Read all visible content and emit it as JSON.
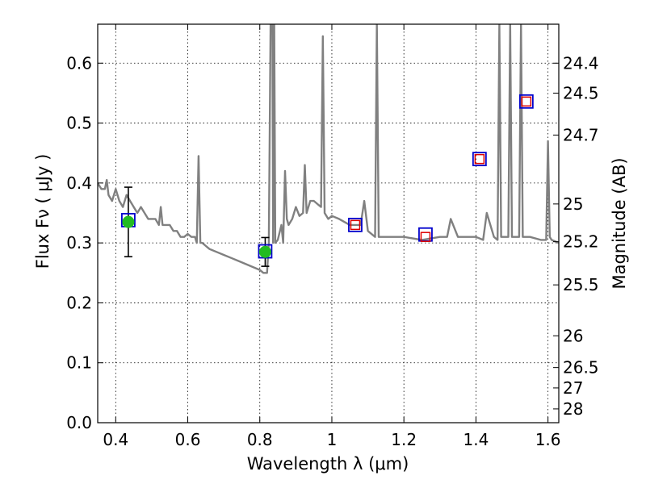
{
  "chart_data": {
    "type": "line",
    "xlabel": "Wavelength  λ (μm)",
    "ylabel": "Flux  Fν  ( μJy )",
    "y2label": "Magnitude (AB)",
    "xlim": [
      0.35,
      1.63
    ],
    "ylim": [
      0.0,
      0.665
    ],
    "grid": true,
    "x_ticks": [
      0.4,
      0.6,
      0.8,
      1.0,
      1.2,
      1.4,
      1.6
    ],
    "x_tick_labels": [
      "0.4",
      "0.6",
      "0.8",
      "1",
      "1.2",
      "1.4",
      "1.6"
    ],
    "y_ticks": [
      0.0,
      0.1,
      0.2,
      0.3,
      0.4,
      0.5,
      0.6
    ],
    "y_tick_labels": [
      "0.0",
      "0.1",
      "0.2",
      "0.3",
      "0.4",
      "0.5",
      "0.6"
    ],
    "y2_ticks": [
      {
        "flux": 0.6,
        "label": "24.4"
      },
      {
        "flux": 0.55,
        "label": "24.5"
      },
      {
        "flux": 0.48,
        "label": "24.7"
      },
      {
        "flux": 0.365,
        "label": "25"
      },
      {
        "flux": 0.302,
        "label": "25.2"
      },
      {
        "flux": 0.23,
        "label": "25.5"
      },
      {
        "flux": 0.145,
        "label": "26"
      },
      {
        "flux": 0.092,
        "label": "26.5"
      },
      {
        "flux": 0.058,
        "label": "27"
      },
      {
        "flux": 0.023,
        "label": "28"
      }
    ],
    "series": [
      {
        "kind": "model-spectrum",
        "color": "#808080",
        "x": [
          0.35,
          0.36,
          0.37,
          0.375,
          0.38,
          0.39,
          0.4,
          0.41,
          0.42,
          0.43,
          0.44,
          0.45,
          0.46,
          0.47,
          0.48,
          0.49,
          0.5,
          0.51,
          0.52,
          0.525,
          0.53,
          0.54,
          0.55,
          0.56,
          0.57,
          0.58,
          0.59,
          0.6,
          0.61,
          0.62,
          0.625,
          0.63,
          0.635,
          0.64,
          0.66,
          0.68,
          0.7,
          0.72,
          0.74,
          0.76,
          0.78,
          0.8,
          0.81,
          0.82,
          0.825,
          0.83,
          0.835,
          0.837,
          0.84,
          0.843,
          0.85,
          0.86,
          0.865,
          0.87,
          0.875,
          0.88,
          0.89,
          0.9,
          0.91,
          0.92,
          0.925,
          0.93,
          0.94,
          0.95,
          0.96,
          0.97,
          0.975,
          0.98,
          0.99,
          1.0,
          1.02,
          1.05,
          1.08,
          1.09,
          1.1,
          1.12,
          1.125,
          1.13,
          1.15,
          1.2,
          1.25,
          1.3,
          1.32,
          1.33,
          1.35,
          1.4,
          1.42,
          1.43,
          1.45,
          1.46,
          1.465,
          1.47,
          1.49,
          1.495,
          1.5,
          1.51,
          1.52,
          1.525,
          1.53,
          1.55,
          1.58,
          1.595,
          1.6,
          1.605,
          1.61,
          1.63
        ],
        "y": [
          0.4,
          0.39,
          0.39,
          0.405,
          0.38,
          0.37,
          0.39,
          0.37,
          0.36,
          0.38,
          0.37,
          0.36,
          0.35,
          0.36,
          0.35,
          0.34,
          0.34,
          0.34,
          0.33,
          0.36,
          0.33,
          0.33,
          0.33,
          0.32,
          0.32,
          0.31,
          0.31,
          0.315,
          0.31,
          0.31,
          0.3,
          0.445,
          0.3,
          0.3,
          0.29,
          0.285,
          0.28,
          0.275,
          0.27,
          0.265,
          0.26,
          0.255,
          0.25,
          0.25,
          0.3,
          0.665,
          0.665,
          0.3,
          0.665,
          0.3,
          0.305,
          0.33,
          0.3,
          0.42,
          0.34,
          0.33,
          0.34,
          0.36,
          0.345,
          0.35,
          0.43,
          0.35,
          0.37,
          0.37,
          0.365,
          0.36,
          0.645,
          0.35,
          0.34,
          0.345,
          0.34,
          0.33,
          0.33,
          0.37,
          0.32,
          0.31,
          0.665,
          0.31,
          0.31,
          0.31,
          0.305,
          0.31,
          0.31,
          0.34,
          0.31,
          0.31,
          0.305,
          0.35,
          0.31,
          0.305,
          0.665,
          0.31,
          0.31,
          0.665,
          0.31,
          0.31,
          0.31,
          0.665,
          0.31,
          0.31,
          0.305,
          0.305,
          0.47,
          0.31,
          0.305,
          0.3
        ]
      },
      {
        "kind": "observed-photometry",
        "marker": "circle",
        "color": "#22bb22",
        "x": [
          0.435,
          0.815
        ],
        "y": [
          0.335,
          0.285
        ],
        "yerr": [
          0.058,
          0.024
        ]
      },
      {
        "kind": "model-photometry",
        "marker": "square",
        "color": "#0000cc",
        "x": [
          0.435,
          0.815,
          1.065,
          1.26,
          1.41,
          1.54
        ],
        "y": [
          0.338,
          0.286,
          0.33,
          0.314,
          0.44,
          0.536
        ]
      },
      {
        "kind": "upper-limit-photometry",
        "marker": "square",
        "color": "#dd0000",
        "x": [
          1.065,
          1.26,
          1.41,
          1.54
        ],
        "y": [
          0.33,
          0.31,
          0.44,
          0.536
        ]
      }
    ]
  }
}
